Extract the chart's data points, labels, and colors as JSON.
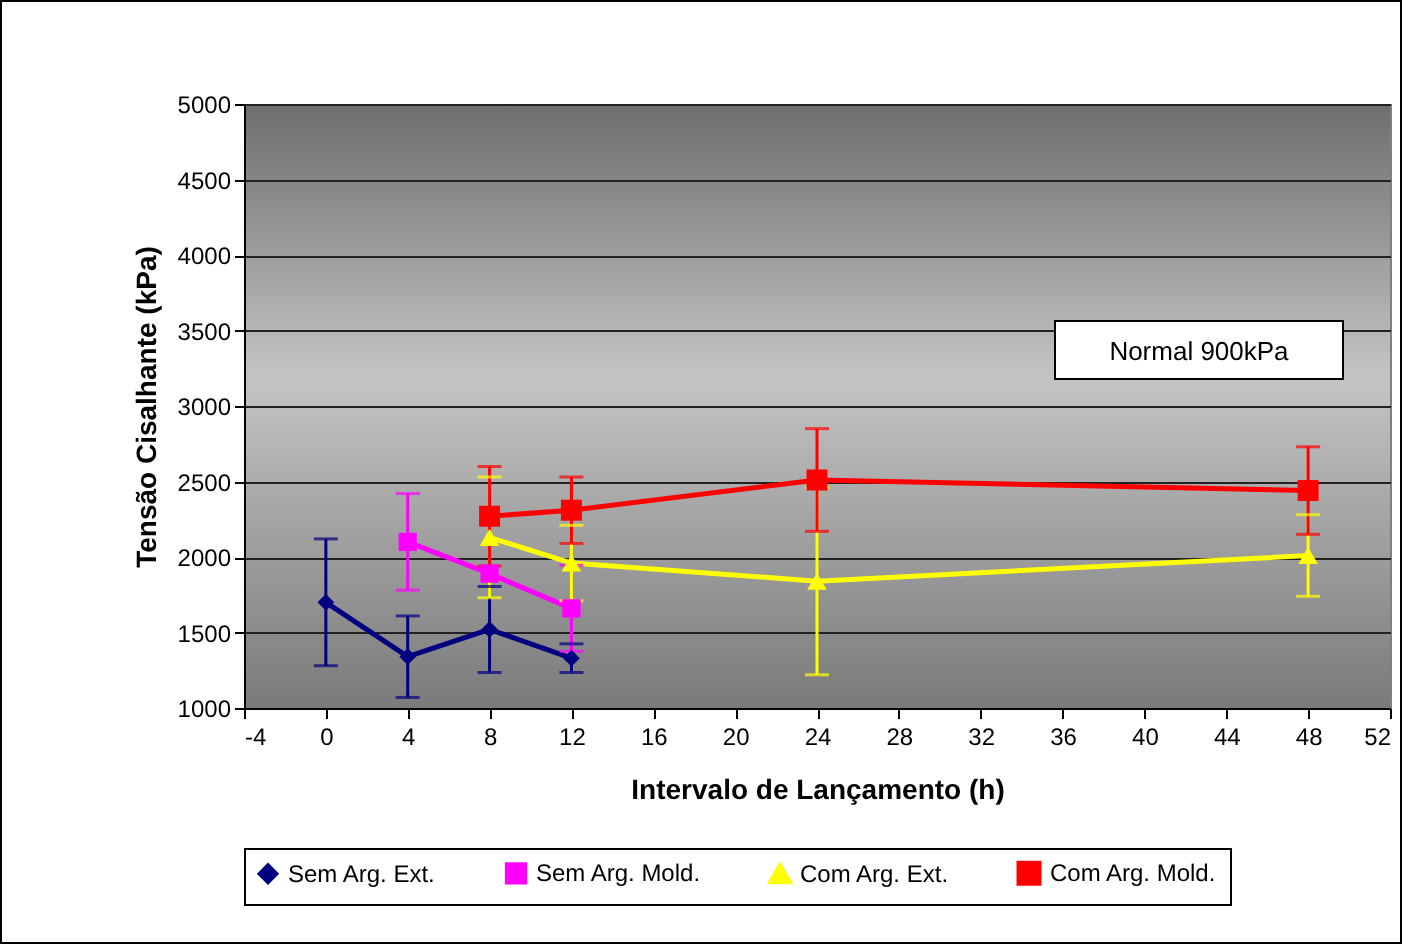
{
  "chart_data": {
    "type": "line",
    "xlabel": "Intervalo de Lançamento (h)",
    "ylabel": "Tensão Cisalhante (kPa)",
    "xlim": [
      -4,
      52
    ],
    "xticks": [
      -4,
      0,
      4,
      8,
      12,
      16,
      20,
      24,
      28,
      32,
      36,
      40,
      44,
      48,
      52
    ],
    "ylim": [
      1000,
      5000
    ],
    "yticks": [
      1000,
      1500,
      2000,
      2500,
      3000,
      3500,
      4000,
      4500,
      5000
    ],
    "grid": "y",
    "legend": "bottom",
    "annotations": [
      "Normal 900kPa"
    ],
    "series": [
      {
        "name": "Sem Arg. Ext.",
        "color": "#000080",
        "marker": "diamond",
        "x": [
          0,
          4,
          8,
          12
        ],
        "values": [
          1700,
          1340,
          1520,
          1330
        ],
        "errors": [
          420,
          270,
          285,
          95
        ]
      },
      {
        "name": "Sem Arg. Mold.",
        "color": "#ff00ff",
        "marker": "square",
        "x": [
          4,
          8,
          12
        ],
        "values": [
          2100,
          1890,
          1660
        ],
        "errors": [
          320,
          null,
          285
        ]
      },
      {
        "name": "Com Arg. Ext.",
        "color": "#ffff00",
        "marker": "triangle",
        "x": [
          8,
          12,
          24,
          48
        ],
        "values": [
          2130,
          1960,
          1840,
          2010
        ],
        "errors": [
          400,
          250,
          620,
          270
        ]
      },
      {
        "name": "Com Arg. Mold.",
        "color": "#ff0000",
        "marker": "square",
        "x": [
          8,
          12,
          24,
          48
        ],
        "values": [
          2270,
          2310,
          2510,
          2440
        ],
        "errors": [
          330,
          220,
          340,
          290
        ]
      }
    ]
  }
}
